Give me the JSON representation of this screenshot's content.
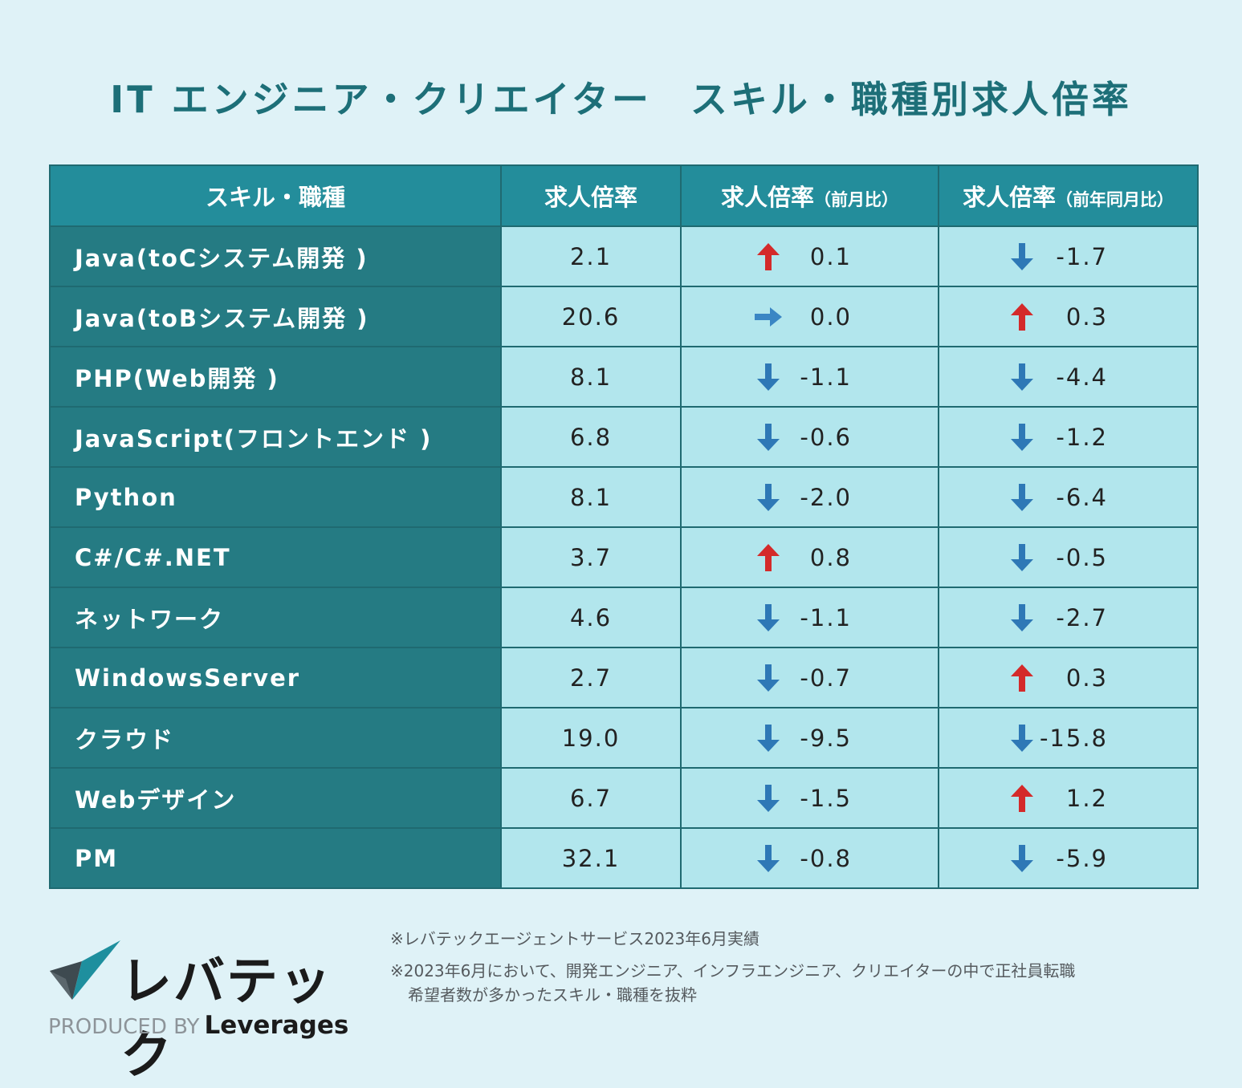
{
  "title": {
    "part1": "IT エンジニア・クリエイター",
    "part2": "スキル・職種別求人倍率"
  },
  "table": {
    "headers": {
      "skill": "スキル・職種",
      "ratio": "求人倍率",
      "mom_main": "求人倍率",
      "mom_paren": "（前月比）",
      "yoy_main": "求人倍率",
      "yoy_paren": "（前年同月比）"
    }
  },
  "chart_data": {
    "type": "table",
    "title": "IT エンジニア・クリエイター　スキル・職種別求人倍率",
    "columns": [
      "スキル・職種",
      "求人倍率",
      "求人倍率（前月比）",
      "求人倍率（前年同月比）"
    ],
    "rows": [
      {
        "skill": "Java(toCシステム開発 )",
        "ratio": "2.1",
        "mom": "0.1",
        "mom_dir": "up",
        "yoy": "-1.7",
        "yoy_dir": "down"
      },
      {
        "skill": "Java(toBシステム開発 )",
        "ratio": "20.6",
        "mom": "0.0",
        "mom_dir": "flat",
        "yoy": "0.3",
        "yoy_dir": "up"
      },
      {
        "skill": "PHP(Web開発 )",
        "ratio": "8.1",
        "mom": "-1.1",
        "mom_dir": "down",
        "yoy": "-4.4",
        "yoy_dir": "down"
      },
      {
        "skill": "JavaScript(フロントエンド )",
        "ratio": "6.8",
        "mom": "-0.6",
        "mom_dir": "down",
        "yoy": "-1.2",
        "yoy_dir": "down"
      },
      {
        "skill": "Python",
        "ratio": "8.1",
        "mom": "-2.0",
        "mom_dir": "down",
        "yoy": "-6.4",
        "yoy_dir": "down"
      },
      {
        "skill": "C#/C#.NET",
        "ratio": "3.7",
        "mom": "0.8",
        "mom_dir": "up",
        "yoy": "-0.5",
        "yoy_dir": "down"
      },
      {
        "skill": "ネットワーク",
        "ratio": "4.6",
        "mom": "-1.1",
        "mom_dir": "down",
        "yoy": "-2.7",
        "yoy_dir": "down"
      },
      {
        "skill": "WindowsServer",
        "ratio": "2.7",
        "mom": "-0.7",
        "mom_dir": "down",
        "yoy": "0.3",
        "yoy_dir": "up"
      },
      {
        "skill": "クラウド",
        "ratio": "19.0",
        "mom": "-9.5",
        "mom_dir": "down",
        "yoy": "-15.8",
        "yoy_dir": "down"
      },
      {
        "skill": "Webデザイン",
        "ratio": "6.7",
        "mom": "-1.5",
        "mom_dir": "down",
        "yoy": "1.2",
        "yoy_dir": "up"
      },
      {
        "skill": "PM",
        "ratio": "32.1",
        "mom": "-0.8",
        "mom_dir": "down",
        "yoy": "-5.9",
        "yoy_dir": "down"
      }
    ]
  },
  "colors": {
    "up": "#d42a2a",
    "down": "#2e78b6",
    "flat": "#3a86c4"
  },
  "logo": {
    "name": "レバテック",
    "produced_by": "PRODUCED BY",
    "brand": "Leverages"
  },
  "notes": {
    "note1": "※レバテックエージェントサービス2023年6月実績",
    "note2_line1": "※2023年6月において、開発エンジニア、インフラエンジニア、クリエイターの中で正社員転職",
    "note2_line2": "希望者数が多かったスキル・職種を抜粋"
  }
}
